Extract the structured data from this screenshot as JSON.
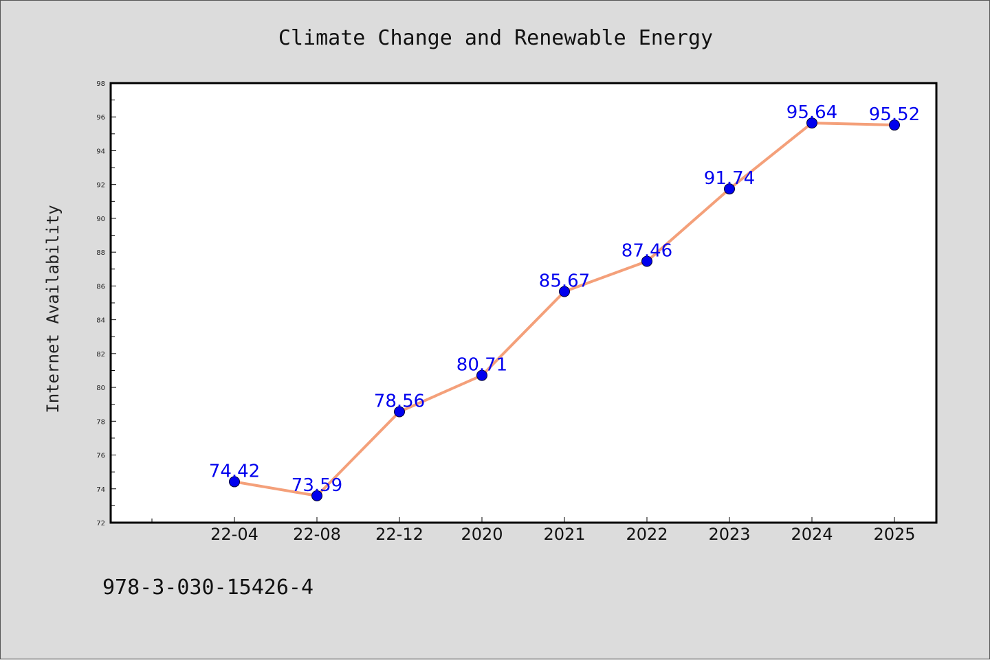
{
  "chart_data": {
    "type": "line",
    "title": "Climate Change and Renewable Energy",
    "xlabel": "",
    "ylabel": "Internet Availability",
    "categories": [
      "22-04",
      "22-08",
      "22-12",
      "2020",
      "2021",
      "2022",
      "2023",
      "2024",
      "2025"
    ],
    "series": [
      {
        "values": [
          74.42,
          73.59,
          78.56,
          80.71,
          85.67,
          87.46,
          91.74,
          95.64,
          95.52
        ]
      }
    ],
    "data_labels": [
      "74.42",
      "73.59",
      "78.56",
      "80.71",
      "85.67",
      "87.46",
      "91.74",
      "95.64",
      "95.52"
    ],
    "ylim": [
      72,
      98
    ],
    "yticks": [
      "72",
      "74",
      "76",
      "78",
      "80",
      "82",
      "84",
      "86",
      "88",
      "90",
      "92",
      "94",
      "96",
      "98"
    ],
    "grid": false,
    "legend": "none",
    "colors": {
      "line": "#f4a07a",
      "marker": "#0000ee",
      "label": "#0000ee",
      "plot_background": "#ffffff",
      "page_background": "#dcdcdc"
    }
  },
  "footer": {
    "text": "978-3-030-15426-4"
  }
}
